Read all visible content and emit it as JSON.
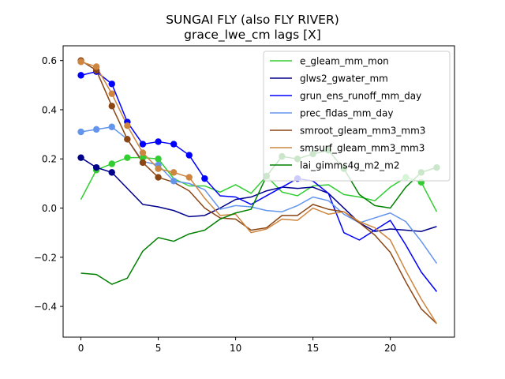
{
  "chart_data": {
    "type": "line",
    "title": "SUNGAI FLY (also FLY RIVER)",
    "subtitle": "grace_lwe_cm lags [X]",
    "x": [
      0,
      1,
      2,
      3,
      4,
      5,
      6,
      7,
      8,
      9,
      10,
      11,
      12,
      13,
      14,
      15,
      16,
      17,
      18,
      19,
      20,
      21,
      22,
      23
    ],
    "xlim": [
      -1.15,
      24.15
    ],
    "ylim": [
      -0.525,
      0.66
    ],
    "xticks": [
      0,
      5,
      10,
      15,
      20
    ],
    "yticks": [
      -0.4,
      -0.2,
      0.0,
      0.2,
      0.4,
      0.6
    ],
    "xtick_labels": [
      "0",
      "5",
      "10",
      "15",
      "20"
    ],
    "ytick_labels": [
      "−0.4",
      "−0.2",
      "0.0",
      "0.2",
      "0.4",
      "0.6"
    ],
    "grid": false,
    "legend_position": "top-right",
    "series": [
      {
        "name": "e_gleam_mm_mon",
        "color": "#32cd32",
        "values": [
          0.035,
          0.155,
          0.18,
          0.205,
          0.205,
          0.2,
          0.12,
          0.09,
          0.09,
          0.065,
          0.095,
          0.06,
          0.13,
          0.065,
          0.05,
          0.09,
          0.095,
          0.055,
          0.045,
          0.03,
          0.085,
          0.125,
          0.105,
          -0.015
        ],
        "markers": [
          1,
          2,
          3,
          4,
          5,
          12,
          21,
          22
        ]
      },
      {
        "name": "glws2_gwater_mm",
        "color": "#00008b",
        "values": [
          0.205,
          0.165,
          0.145,
          0.08,
          0.015,
          0.005,
          -0.01,
          -0.035,
          -0.03,
          0.0,
          0.035,
          0.045,
          0.07,
          0.085,
          0.08,
          0.085,
          0.06,
          0.0,
          -0.06,
          -0.095,
          -0.085,
          -0.09,
          -0.095,
          -0.075
        ],
        "markers": [
          0,
          1,
          2
        ]
      },
      {
        "name": "grun_ens_runoff_mm_day",
        "color": "#0000ff",
        "values": [
          0.54,
          0.555,
          0.505,
          0.35,
          0.26,
          0.27,
          0.26,
          0.215,
          0.12,
          0.05,
          0.045,
          0.015,
          0.05,
          0.085,
          0.12,
          0.11,
          0.06,
          -0.1,
          -0.13,
          -0.09,
          -0.05,
          -0.15,
          -0.26,
          -0.34
        ],
        "markers": [
          0,
          1,
          2,
          3,
          4,
          5,
          6,
          7,
          8,
          14
        ]
      },
      {
        "name": "prec_fldas_mm_day",
        "color": "#6495ed",
        "values": [
          0.31,
          0.32,
          0.33,
          0.28,
          0.19,
          0.175,
          0.11,
          0.1,
          0.075,
          -0.005,
          0.01,
          0.005,
          -0.01,
          -0.015,
          0.01,
          0.045,
          0.03,
          -0.025,
          -0.06,
          -0.04,
          -0.02,
          -0.055,
          -0.135,
          -0.225
        ],
        "markers": [
          0,
          1,
          2,
          3,
          5,
          6
        ]
      },
      {
        "name": "smroot_gleam_mm3_mm3",
        "color": "#8b4513",
        "values": [
          0.6,
          0.56,
          0.415,
          0.28,
          0.185,
          0.125,
          0.105,
          0.07,
          0.0,
          -0.04,
          -0.045,
          -0.09,
          -0.08,
          -0.03,
          -0.03,
          0.015,
          -0.005,
          -0.015,
          -0.06,
          -0.11,
          -0.18,
          -0.3,
          -0.41,
          -0.47
        ],
        "markers": [
          0,
          1,
          2,
          3,
          4,
          5
        ]
      },
      {
        "name": "smsurf_gleam_mm3_mm3",
        "color": "#cd853f",
        "values": [
          0.595,
          0.575,
          0.465,
          0.335,
          0.225,
          0.16,
          0.145,
          0.125,
          0.04,
          -0.03,
          -0.025,
          -0.1,
          -0.085,
          -0.045,
          -0.05,
          0.0,
          -0.025,
          -0.015,
          -0.055,
          -0.08,
          -0.13,
          -0.255,
          -0.37,
          -0.47
        ],
        "markers": [
          0,
          1,
          2,
          3,
          4,
          5,
          6,
          7
        ]
      },
      {
        "name": "lai_gimms4g_m2_m2",
        "color": "#008000",
        "values": [
          -0.265,
          -0.27,
          -0.31,
          -0.285,
          -0.175,
          -0.12,
          -0.135,
          -0.105,
          -0.09,
          -0.045,
          -0.02,
          -0.005,
          0.13,
          0.21,
          0.2,
          0.22,
          0.235,
          0.16,
          0.055,
          0.01,
          0.0,
          0.085,
          0.145,
          0.165
        ],
        "markers": [
          12,
          13,
          14,
          15,
          16,
          17,
          22,
          23
        ]
      }
    ]
  }
}
